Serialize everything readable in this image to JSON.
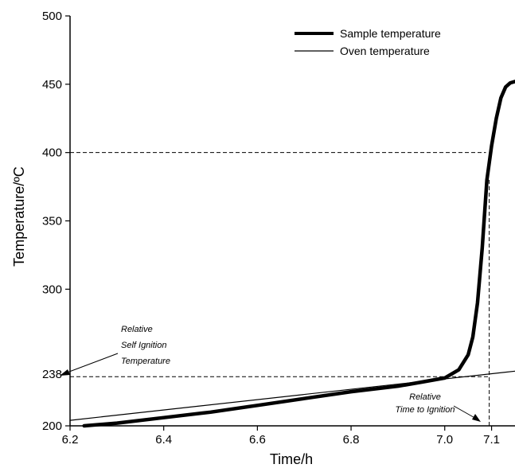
{
  "chart_data": {
    "type": "line",
    "xlabel": "Time/h",
    "ylabel": "Temperature/ºC",
    "xlim": [
      6.2,
      7.15
    ],
    "ylim": [
      200,
      500
    ],
    "x_ticks": [
      6.2,
      6.4,
      6.6,
      6.8,
      7.0,
      7.1
    ],
    "x_tick_labels": [
      "6.2",
      "6.4",
      "6.6",
      "6.8",
      "7.0",
      "7.1"
    ],
    "y_ticks": [
      200,
      238,
      300,
      350,
      400,
      450,
      500
    ],
    "y_tick_labels": [
      "200",
      "238",
      "300",
      "350",
      "400",
      "450",
      "500"
    ],
    "legend_position": "top-right",
    "series": [
      {
        "name": "Sample temperature",
        "style": "thick",
        "x": [
          6.23,
          6.3,
          6.4,
          6.5,
          6.6,
          6.7,
          6.8,
          6.9,
          6.95,
          7.0,
          7.03,
          7.05,
          7.06,
          7.07,
          7.08,
          7.09,
          7.1,
          7.11,
          7.12,
          7.13,
          7.14,
          7.15
        ],
        "y": [
          200,
          202,
          206,
          210,
          215,
          220,
          225,
          229,
          232,
          235,
          241,
          252,
          265,
          290,
          330,
          380,
          405,
          425,
          440,
          448,
          451,
          452
        ]
      },
      {
        "name": "Oven temperature",
        "style": "thin",
        "x": [
          6.2,
          7.15
        ],
        "y": [
          204,
          240
        ]
      }
    ],
    "reference_lines": [
      {
        "axis": "y",
        "value": 400,
        "x_to": 7.088
      },
      {
        "axis": "y",
        "value": 236,
        "x_from": 6.2,
        "x_to": 7.095
      },
      {
        "axis": "x",
        "value": 7.095,
        "y_from": 200,
        "y_to": 380
      }
    ],
    "annotations": [
      {
        "id": "rsit",
        "lines": [
          "Relative",
          "Self Ignition",
          "Temperature"
        ]
      },
      {
        "id": "rtti",
        "lines": [
          "Relative",
          "Time to Ignition"
        ]
      }
    ]
  }
}
